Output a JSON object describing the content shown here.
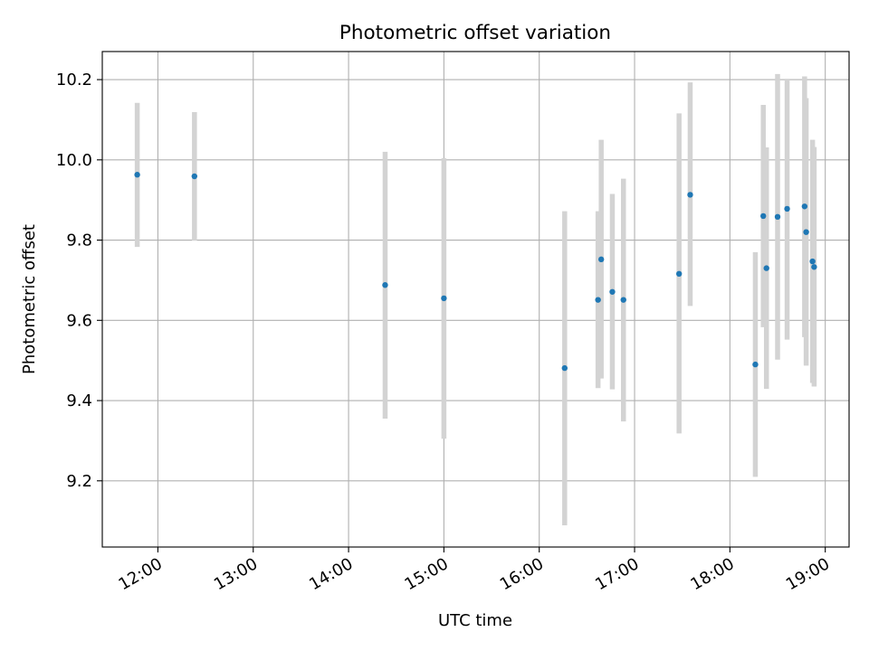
{
  "chart_data": {
    "type": "scatter",
    "title": "Photometric offset variation",
    "xlabel": "UTC time",
    "ylabel": "Photometric offset",
    "xlim": [
      "11:25",
      "19:15"
    ],
    "ylim": [
      9.035,
      10.27
    ],
    "x_ticks": [
      "12:00",
      "13:00",
      "14:00",
      "15:00",
      "16:00",
      "17:00",
      "18:00",
      "19:00"
    ],
    "y_ticks": [
      9.2,
      9.4,
      9.6,
      9.8,
      10.0,
      10.2
    ],
    "grid": true,
    "colors": {
      "point": "#1f77b4",
      "errorbar": "#d3d3d3"
    },
    "points": [
      {
        "x": "11:47",
        "y": 9.963,
        "yerr_low": 9.783,
        "yerr_high": 10.142
      },
      {
        "x": "12:23",
        "y": 9.959,
        "yerr_low": 9.799,
        "yerr_high": 10.119
      },
      {
        "x": "14:23",
        "y": 9.688,
        "yerr_low": 9.355,
        "yerr_high": 10.02
      },
      {
        "x": "15:00",
        "y": 9.655,
        "yerr_low": 9.305,
        "yerr_high": 10.004
      },
      {
        "x": "16:16",
        "y": 9.481,
        "yerr_low": 9.089,
        "yerr_high": 9.872
      },
      {
        "x": "16:37",
        "y": 9.651,
        "yerr_low": 9.431,
        "yerr_high": 9.872
      },
      {
        "x": "16:39",
        "y": 9.752,
        "yerr_low": 9.455,
        "yerr_high": 10.05
      },
      {
        "x": "16:46",
        "y": 9.671,
        "yerr_low": 9.428,
        "yerr_high": 9.915
      },
      {
        "x": "16:53",
        "y": 9.651,
        "yerr_low": 9.348,
        "yerr_high": 9.953
      },
      {
        "x": "17:28",
        "y": 9.716,
        "yerr_low": 9.318,
        "yerr_high": 10.116
      },
      {
        "x": "17:35",
        "y": 9.913,
        "yerr_low": 9.636,
        "yerr_high": 10.193
      },
      {
        "x": "18:16",
        "y": 9.49,
        "yerr_low": 9.21,
        "yerr_high": 9.77
      },
      {
        "x": "18:21",
        "y": 9.86,
        "yerr_low": 9.583,
        "yerr_high": 10.137
      },
      {
        "x": "18:23",
        "y": 9.73,
        "yerr_low": 9.429,
        "yerr_high": 10.031
      },
      {
        "x": "18:30",
        "y": 9.858,
        "yerr_low": 9.502,
        "yerr_high": 10.214
      },
      {
        "x": "18:36",
        "y": 9.878,
        "yerr_low": 9.552,
        "yerr_high": 10.202
      },
      {
        "x": "18:47",
        "y": 9.884,
        "yerr_low": 9.558,
        "yerr_high": 10.208
      },
      {
        "x": "18:48",
        "y": 9.82,
        "yerr_low": 9.487,
        "yerr_high": 10.154
      },
      {
        "x": "18:52",
        "y": 9.747,
        "yerr_low": 9.444,
        "yerr_high": 10.05
      },
      {
        "x": "18:53",
        "y": 9.733,
        "yerr_low": 9.435,
        "yerr_high": 10.032
      }
    ]
  }
}
